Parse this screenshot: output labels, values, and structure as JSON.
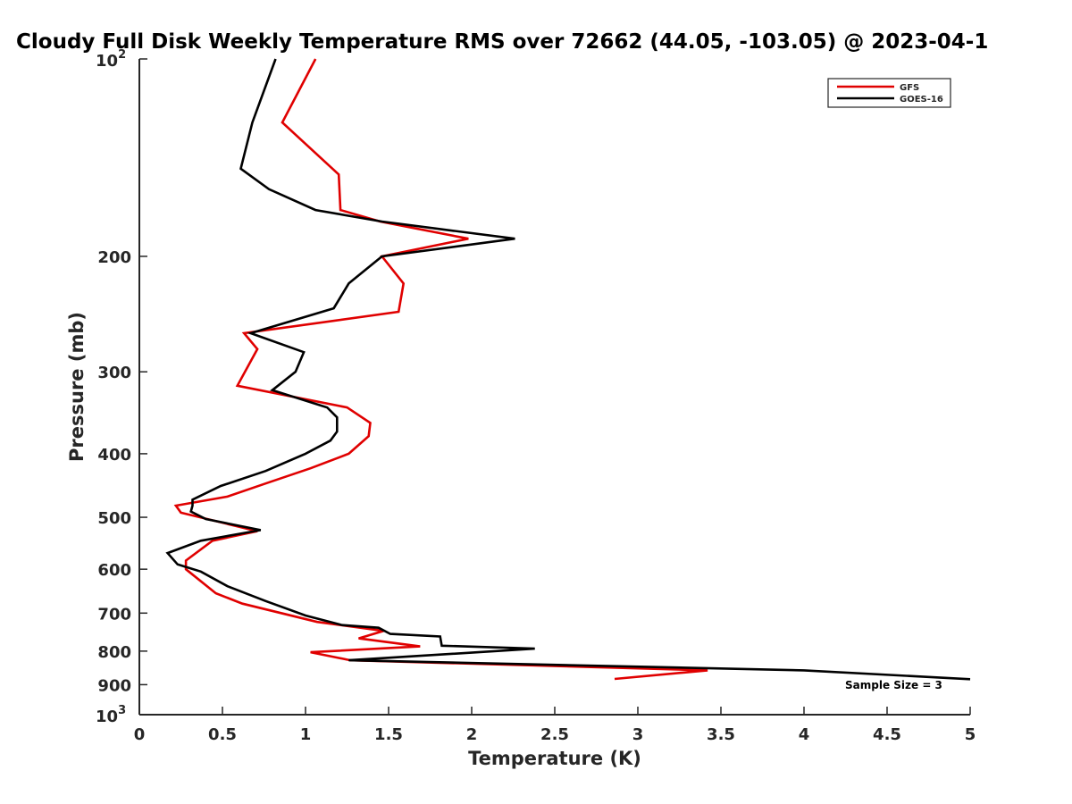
{
  "chart_data": {
    "type": "line",
    "title": "Cloudy Full Disk Weekly Temperature RMS over 72662 (44.05, -103.05) @ 2023-04-1",
    "xlabel": "Temperature (K)",
    "ylabel": "Pressure (mb)",
    "xlim": [
      0,
      5
    ],
    "ylim": [
      100,
      1000
    ],
    "yscale": "log",
    "y_reversed": true,
    "grid": false,
    "legend_position": "top-right",
    "x_ticks": [
      "0",
      "0.5",
      "1",
      "1.5",
      "2",
      "2.5",
      "3",
      "3.5",
      "4",
      "4.5",
      "5"
    ],
    "y_ticks": [
      "200",
      "300",
      "400",
      "500",
      "600",
      "700",
      "800",
      "900"
    ],
    "y_ticks_power": [
      {
        "base": "10",
        "exp": "2",
        "value": 100
      },
      {
        "base": "10",
        "exp": "3",
        "value": 1000
      }
    ],
    "annotation": "Sample Size = 3",
    "series": [
      {
        "name": "GFS",
        "color": "#e00000",
        "points": [
          [
            1.06,
            100
          ],
          [
            0.86,
            125
          ],
          [
            1.2,
            150
          ],
          [
            1.21,
            170
          ],
          [
            1.45,
            177
          ],
          [
            1.98,
            188
          ],
          [
            1.46,
            200
          ],
          [
            1.59,
            220
          ],
          [
            1.56,
            243
          ],
          [
            0.63,
            262
          ],
          [
            0.71,
            277
          ],
          [
            0.59,
            315
          ],
          [
            1.25,
            340
          ],
          [
            1.39,
            359
          ],
          [
            1.38,
            376
          ],
          [
            1.26,
            400
          ],
          [
            1.03,
            421
          ],
          [
            0.76,
            444
          ],
          [
            0.53,
            465
          ],
          [
            0.22,
            480
          ],
          [
            0.25,
            492
          ],
          [
            0.71,
            525
          ],
          [
            0.44,
            543
          ],
          [
            0.28,
            582
          ],
          [
            0.28,
            600
          ],
          [
            0.46,
            653
          ],
          [
            0.62,
            677
          ],
          [
            1.07,
            722
          ],
          [
            1.47,
            745
          ],
          [
            1.32,
            765
          ],
          [
            1.69,
            787
          ],
          [
            1.03,
            803
          ],
          [
            1.27,
            826
          ],
          [
            3.42,
            856
          ],
          [
            2.86,
            882
          ]
        ]
      },
      {
        "name": "GOES-16",
        "color": "#000000",
        "points": [
          [
            0.82,
            100
          ],
          [
            0.68,
            125
          ],
          [
            0.61,
            147
          ],
          [
            0.78,
            158
          ],
          [
            1.06,
            170
          ],
          [
            1.46,
            177
          ],
          [
            2.26,
            188
          ],
          [
            1.46,
            200
          ],
          [
            1.26,
            220
          ],
          [
            1.17,
            240
          ],
          [
            0.67,
            262
          ],
          [
            0.99,
            280
          ],
          [
            0.94,
            300
          ],
          [
            0.8,
            320
          ],
          [
            1.13,
            340
          ],
          [
            1.19,
            352
          ],
          [
            1.19,
            370
          ],
          [
            1.15,
            382
          ],
          [
            1.0,
            400
          ],
          [
            0.76,
            425
          ],
          [
            0.49,
            448
          ],
          [
            0.32,
            470
          ],
          [
            0.32,
            480
          ],
          [
            0.31,
            490
          ],
          [
            0.4,
            503
          ],
          [
            0.73,
            523
          ],
          [
            0.37,
            543
          ],
          [
            0.17,
            567
          ],
          [
            0.23,
            590
          ],
          [
            0.37,
            605
          ],
          [
            0.53,
            637
          ],
          [
            0.76,
            671
          ],
          [
            1.0,
            706
          ],
          [
            1.22,
            730
          ],
          [
            1.44,
            737
          ],
          [
            1.51,
            753
          ],
          [
            1.81,
            760
          ],
          [
            1.82,
            785
          ],
          [
            2.38,
            793
          ],
          [
            1.26,
            826
          ],
          [
            4.0,
            856
          ],
          [
            5.0,
            883
          ]
        ]
      }
    ]
  }
}
